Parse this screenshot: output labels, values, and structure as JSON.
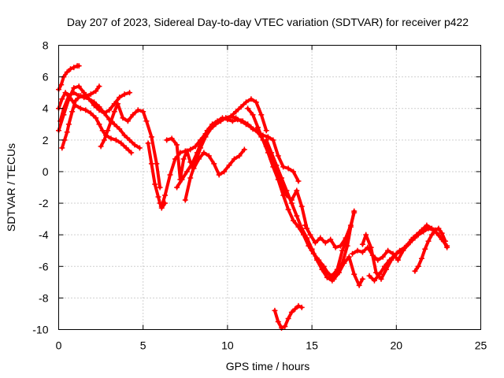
{
  "chart_data": {
    "type": "scatter",
    "title": "Day 207 of 2023, Sidereal Day-to-day VTEC variation (SDTVAR) for receiver p422",
    "xlabel": "GPS time / hours",
    "ylabel": "SDTVAR / TECUs",
    "xlim": [
      0,
      25
    ],
    "ylim": [
      -10,
      8
    ],
    "xticks": [
      0,
      5,
      10,
      15,
      20,
      25
    ],
    "yticks": [
      -10,
      -8,
      -6,
      -4,
      -2,
      0,
      2,
      4,
      6,
      8
    ],
    "grid": true,
    "legend": "none",
    "marker": "plus",
    "color": "#ff0000",
    "series": [
      {
        "x": [
          0.0,
          0.15,
          0.3,
          0.5,
          0.7,
          0.9,
          1.1,
          1.2
        ],
        "y": [
          5.2,
          5.5,
          6.0,
          6.3,
          6.5,
          6.6,
          6.7,
          6.7
        ]
      },
      {
        "x": [
          0.0,
          0.2,
          0.4,
          0.6,
          0.8,
          1.0,
          1.3,
          1.6,
          1.9,
          2.2,
          2.4,
          2.6,
          2.8,
          3.1,
          3.4,
          3.7,
          4.0,
          4.3
        ],
        "y": [
          4.0,
          4.6,
          5.0,
          4.8,
          4.5,
          4.2,
          4.0,
          3.9,
          3.7,
          3.4,
          3.0,
          2.6,
          2.3,
          2.1,
          2.0,
          1.8,
          1.5,
          1.2
        ]
      },
      {
        "x": [
          0.2,
          0.35,
          0.5,
          0.6,
          0.8,
          1.0,
          1.3,
          1.6,
          1.9,
          2.2,
          2.4
        ],
        "y": [
          1.5,
          2.0,
          2.5,
          3.0,
          3.8,
          4.5,
          4.8,
          4.8,
          4.9,
          5.1,
          5.4
        ]
      },
      {
        "x": [
          0.0,
          0.3,
          0.6,
          0.9,
          1.2,
          1.5,
          1.8,
          2.1,
          2.4,
          2.7,
          3.0,
          3.3,
          3.6,
          3.9,
          4.2
        ],
        "y": [
          2.6,
          3.6,
          4.6,
          5.3,
          5.4,
          5.0,
          4.6,
          4.2,
          3.9,
          3.7,
          3.9,
          4.3,
          4.7,
          4.9,
          5.0
        ]
      },
      {
        "x": [
          0.1,
          0.3,
          0.6,
          0.9,
          1.2,
          1.5,
          1.8,
          2.1,
          2.4,
          2.7,
          3.0,
          3.3,
          3.6,
          3.9,
          4.2,
          4.5,
          4.8
        ],
        "y": [
          3.2,
          4.0,
          4.8,
          5.0,
          4.8,
          4.7,
          4.6,
          4.4,
          4.1,
          3.7,
          3.3,
          3.0,
          2.7,
          2.3,
          2.0,
          1.7,
          1.5
        ]
      },
      {
        "x": [
          2.5,
          2.7,
          2.9,
          3.1,
          3.3,
          3.5,
          3.8,
          4.1,
          4.4,
          4.7,
          5.0,
          5.2,
          5.5,
          5.8,
          6.0
        ],
        "y": [
          1.6,
          2.0,
          2.6,
          3.2,
          3.8,
          4.3,
          3.4,
          3.2,
          3.6,
          3.9,
          3.8,
          3.2,
          2.2,
          0.5,
          -1.0
        ]
      },
      {
        "x": [
          5.3,
          5.5,
          5.7,
          5.9,
          6.0,
          6.1,
          6.3
        ],
        "y": [
          1.8,
          0.5,
          -0.8,
          -1.6,
          -2.0,
          -2.3,
          -2.0
        ]
      },
      {
        "x": [
          6.1,
          6.3,
          6.6,
          6.9,
          7.2,
          7.5,
          7.8,
          8.1,
          8.4,
          8.7,
          9.0,
          9.3,
          9.6,
          9.9,
          10.2,
          10.5,
          10.8,
          11.1,
          11.4,
          11.7,
          12.0,
          12.3
        ],
        "y": [
          -2.2,
          -1.5,
          -0.2,
          0.8,
          1.2,
          1.3,
          1.4,
          1.6,
          2.0,
          2.4,
          2.8,
          3.1,
          3.3,
          3.4,
          3.5,
          3.8,
          4.1,
          4.4,
          4.6,
          4.4,
          3.6,
          2.6
        ]
      },
      {
        "x": [
          6.4,
          6.7,
          7.0,
          7.2,
          7.4,
          7.6,
          7.8,
          8.0,
          8.3,
          8.6,
          8.9,
          9.2,
          9.5,
          9.8,
          10.1,
          10.4,
          10.7,
          11.0
        ],
        "y": [
          2.0,
          2.1,
          1.7,
          -0.5,
          0.8,
          1.3,
          0.6,
          0.2,
          0.8,
          1.2,
          1.0,
          0.5,
          -0.2,
          0.0,
          0.4,
          0.8,
          1.0,
          1.4
        ]
      },
      {
        "x": [
          7.0,
          7.3,
          7.6,
          7.9,
          8.2,
          8.5,
          8.8,
          9.1,
          9.4,
          9.7,
          10.0,
          10.3,
          10.6,
          10.9,
          11.2,
          11.5,
          11.8,
          12.1,
          12.4,
          12.7,
          13.0,
          13.3,
          13.6,
          13.9,
          14.2
        ],
        "y": [
          -1.0,
          -0.5,
          0.0,
          0.5,
          1.2,
          2.0,
          2.6,
          3.0,
          3.2,
          3.4,
          3.3,
          3.2,
          3.3,
          3.2,
          3.0,
          2.7,
          2.5,
          2.3,
          2.2,
          2.0,
          1.0,
          0.3,
          0.2,
          0.0,
          -0.6
        ]
      },
      {
        "x": [
          7.5,
          7.8,
          8.1,
          8.4,
          8.7,
          9.0,
          9.3,
          9.6,
          9.9,
          10.2,
          10.5,
          10.8,
          11.1,
          11.4,
          11.7,
          12.0,
          12.3,
          12.6,
          12.9,
          13.2,
          13.5,
          13.8,
          14.1,
          14.4,
          14.7
        ],
        "y": [
          -1.8,
          -0.4,
          0.6,
          1.5,
          2.2,
          2.7,
          3.0,
          3.2,
          3.4,
          3.5,
          3.4,
          3.2,
          3.0,
          2.8,
          2.6,
          2.2,
          1.6,
          0.8,
          0.0,
          -0.8,
          -1.5,
          -1.8,
          -1.2,
          -2.2,
          -3.6
        ]
      },
      {
        "x": [
          11.2,
          11.5,
          11.8,
          12.1,
          12.4,
          12.7,
          13.0,
          13.3,
          13.6,
          13.9,
          14.2,
          14.5,
          14.8,
          15.1,
          15.4,
          15.7,
          16.0,
          16.3,
          16.6,
          16.9,
          17.2,
          17.5,
          17.8,
          18.0
        ],
        "y": [
          4.0,
          3.6,
          2.8,
          2.0,
          1.2,
          0.3,
          -0.5,
          -1.5,
          -2.4,
          -3.1,
          -3.5,
          -4.0,
          -4.7,
          -5.2,
          -5.6,
          -6.0,
          -6.5,
          -6.8,
          -6.4,
          -5.8,
          -5.4,
          -6.5,
          -7.2,
          -6.8
        ]
      },
      {
        "x": [
          12.3,
          12.6,
          12.9,
          13.2,
          13.5,
          13.8,
          14.1,
          14.4,
          14.7,
          15.0,
          15.3,
          15.6,
          15.9,
          16.2,
          16.5,
          16.8,
          17.1,
          17.3,
          17.5
        ],
        "y": [
          2.0,
          1.2,
          0.4,
          -0.4,
          -1.2,
          -2.0,
          -2.8,
          -3.6,
          -4.2,
          -4.9,
          -5.6,
          -6.2,
          -6.7,
          -6.9,
          -6.5,
          -5.8,
          -4.7,
          -3.5,
          -2.5
        ]
      },
      {
        "x": [
          14.6,
          14.9,
          15.2,
          15.5,
          15.8,
          16.1,
          16.4,
          16.7,
          17.0,
          17.3,
          17.5
        ],
        "y": [
          -3.4,
          -4.0,
          -4.5,
          -4.2,
          -4.5,
          -4.3,
          -4.8,
          -4.7,
          -4.2,
          -3.4,
          -2.6
        ]
      },
      {
        "x": [
          14.7,
          15.0,
          15.3,
          15.6,
          15.9,
          16.2,
          16.5,
          16.8,
          17.1
        ],
        "y": [
          -4.3,
          -5.0,
          -5.5,
          -6.0,
          -6.4,
          -6.6,
          -6.2,
          -5.0,
          -4.2
        ]
      },
      {
        "x": [
          12.8,
          13.0,
          13.2,
          13.4,
          13.6,
          13.8,
          14.0,
          14.2,
          14.4
        ],
        "y": [
          -8.8,
          -9.5,
          -9.9,
          -9.8,
          -9.3,
          -8.9,
          -8.7,
          -8.5,
          -8.6
        ]
      },
      {
        "x": [
          17.4,
          17.7,
          18.0,
          18.3,
          18.6,
          18.9,
          19.2,
          19.5,
          19.8,
          20.1,
          20.4,
          20.7,
          21.0,
          21.3,
          21.6,
          21.9,
          22.2,
          22.5,
          22.8,
          23.0
        ],
        "y": [
          -5.2,
          -5.0,
          -5.1,
          -4.8,
          -5.3,
          -5.6,
          -5.4,
          -5.0,
          -5.2,
          -5.6,
          -5.0,
          -4.6,
          -4.2,
          -4.0,
          -3.8,
          -3.6,
          -3.7,
          -4.0,
          -4.4,
          -4.8
        ]
      },
      {
        "x": [
          18.0,
          18.2,
          18.5,
          18.8,
          19.1,
          19.4,
          19.7,
          20.0,
          20.3,
          20.6,
          20.9,
          21.2,
          21.5,
          21.8,
          22.1,
          22.4,
          22.7,
          23.0
        ],
        "y": [
          -4.6,
          -4.0,
          -4.8,
          -6.4,
          -6.8,
          -6.2,
          -5.6,
          -5.2,
          -5.0,
          -4.7,
          -4.3,
          -4.0,
          -3.7,
          -3.4,
          -3.6,
          -3.9,
          -4.3,
          -4.7
        ]
      },
      {
        "x": [
          18.4,
          18.7,
          19.0,
          19.3,
          19.6,
          19.9,
          20.2,
          20.5,
          20.8,
          21.1
        ],
        "y": [
          -6.6,
          -6.9,
          -6.5,
          -6.0,
          -5.6,
          -5.3,
          -5.0,
          -4.8,
          -4.5,
          -4.2
        ]
      },
      {
        "x": [
          21.1,
          21.3,
          21.5,
          21.7,
          21.9,
          22.1,
          22.3,
          22.5,
          22.7,
          22.9
        ],
        "y": [
          -6.3,
          -6.0,
          -5.5,
          -4.9,
          -4.4,
          -4.0,
          -3.7,
          -3.6,
          -3.9,
          -4.4
        ]
      }
    ]
  }
}
